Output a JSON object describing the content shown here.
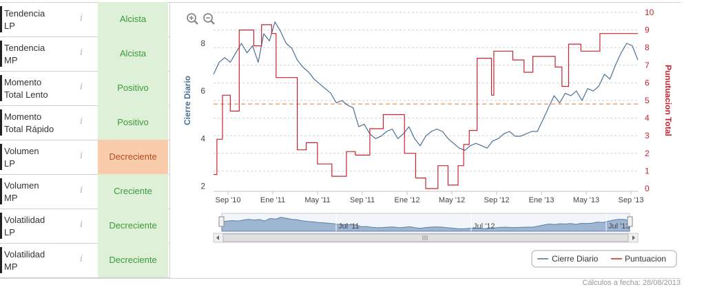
{
  "indicators": [
    {
      "line1": "Tendencia",
      "line2": "LP",
      "value": "Alcista",
      "tone": "pos"
    },
    {
      "line1": "Tendencia",
      "line2": "MP",
      "value": "Alcista",
      "tone": "pos"
    },
    {
      "line1": "Momento",
      "line2": "Total Lento",
      "value": "Positivo",
      "tone": "pos"
    },
    {
      "line1": "Momento",
      "line2": "Total Rápido",
      "value": "Positivo",
      "tone": "pos"
    },
    {
      "line1": "Volumen",
      "line2": "LP",
      "value": "Decreciente",
      "tone": "neg"
    },
    {
      "line1": "Volumen",
      "line2": "MP",
      "value": "Creciente",
      "tone": "pos"
    },
    {
      "line1": "Volatilidad",
      "line2": "LP",
      "value": "Decreciente",
      "tone": "pos"
    },
    {
      "line1": "Volatilidad",
      "line2": "MP",
      "value": "Decreciente",
      "tone": "pos"
    }
  ],
  "info_glyph": "i",
  "footer": "Cálculos a fecha: 28/08/2013",
  "colors": {
    "left_axis": "#4a6f94",
    "right_axis": "#c8222f",
    "positive_bg": "#dff0d8",
    "negative_bg": "#f9cdab",
    "threshold": "#f0a070"
  },
  "icons": [
    "zoom-in-icon",
    "zoom-out-icon"
  ],
  "chart_data": {
    "type": "line",
    "xlabels": [
      "Sep '10",
      "Ene '11",
      "May '11",
      "Sep '11",
      "Ene '12",
      "May '12",
      "Sep '12",
      "Ene '13",
      "May '13",
      "Sep '13"
    ],
    "ylabel_left": "Cierre Diario",
    "ylabel_right": "Punutuacion Total",
    "yticks_left": [
      2,
      4,
      6,
      8
    ],
    "yticks_right": [
      0,
      1,
      2,
      3,
      4,
      5,
      6,
      7,
      8,
      9,
      10
    ],
    "ylim_left": [
      1.9,
      9.3
    ],
    "ylim_right": [
      0,
      10
    ],
    "threshold_right": 4.8,
    "legend": [
      "Cierre Diario",
      "Puntuacion"
    ],
    "legend_position": "bottom-right",
    "grid": true,
    "series": [
      {
        "name": "Cierre Diario",
        "axis": "left",
        "color": "#4a6f94",
        "x": [
          0,
          0.5,
          1,
          1.5,
          2,
          2.5,
          3,
          3.5,
          4,
          4.5,
          5,
          5.5,
          6,
          6.5,
          7,
          7.5,
          8,
          8.5,
          9,
          9.5,
          10,
          10.5,
          11,
          11.5,
          12,
          12.5,
          13,
          13.5,
          14,
          14.5,
          15,
          15.5,
          16,
          16.5,
          17,
          17.5,
          18,
          18.5,
          19,
          19.5,
          20,
          20.5,
          21,
          21.5,
          22,
          22.5,
          23,
          23.5,
          24,
          24.5,
          25,
          25.5,
          26,
          26.5,
          27,
          27.5,
          28,
          28.5,
          29,
          29.5,
          30,
          30.5,
          31,
          31.5,
          32,
          32.5,
          33,
          33.5,
          34,
          34.5,
          35,
          35.5,
          36,
          36.5,
          37,
          37.5,
          38
        ],
        "values": [
          6.7,
          7.2,
          7.4,
          7.2,
          7.6,
          8.0,
          7.6,
          7.9,
          7.2,
          8.4,
          8.1,
          8.9,
          8.5,
          8.0,
          7.8,
          7.3,
          7.0,
          6.8,
          6.5,
          6.3,
          6.1,
          5.9,
          5.5,
          5.6,
          5.4,
          5.3,
          4.5,
          4.6,
          4.2,
          4.0,
          4.1,
          4.3,
          4.4,
          4.0,
          4.2,
          4.5,
          4.0,
          3.7,
          4.1,
          4.3,
          4.4,
          4.3,
          4.0,
          3.8,
          3.6,
          3.5,
          3.7,
          3.8,
          3.7,
          3.6,
          3.9,
          4.0,
          4.2,
          4.3,
          4.1,
          4.1,
          4.2,
          4.3,
          4.3,
          4.8,
          5.3,
          5.8,
          5.5,
          5.9,
          5.8,
          6.0,
          5.6,
          6.1,
          6.0,
          6.2,
          6.7,
          6.5,
          7.1,
          7.6,
          8.0,
          7.9,
          7.3
        ]
      },
      {
        "name": "Puntuacion",
        "axis": "right",
        "color": "#c8222f",
        "x": [
          0,
          0.3,
          0.3,
          0.8,
          0.8,
          1.5,
          1.5,
          2.3,
          2.3,
          3.6,
          3.6,
          4.3,
          4.3,
          5.2,
          5.2,
          5.6,
          5.6,
          7.5,
          7.5,
          8.3,
          8.3,
          9.3,
          9.3,
          10.6,
          10.6,
          11.9,
          11.9,
          12.7,
          12.7,
          14.0,
          14.0,
          15.2,
          15.2,
          17.1,
          17.1,
          18.1,
          18.1,
          19.0,
          19.0,
          20.1,
          20.1,
          21.0,
          21.0,
          21.9,
          21.9,
          22.4,
          22.4,
          22.9,
          22.9,
          23.6,
          23.6,
          24.9,
          24.9,
          25.1,
          25.1,
          26.8,
          26.8,
          27.8,
          27.8,
          28.6,
          28.6,
          30.6,
          30.6,
          31.2,
          31.2,
          31.8,
          31.8,
          32.9,
          32.9,
          34.6,
          34.6,
          35.5,
          35.5,
          36.4,
          36.4,
          37.5,
          37.5,
          38
        ],
        "values": [
          0.8,
          0.8,
          2.8,
          2.8,
          5.3,
          5.3,
          4.4,
          4.4,
          9.0,
          9.0,
          8.1,
          8.1,
          9.3,
          9.3,
          8.8,
          8.8,
          6.3,
          6.3,
          2.2,
          2.2,
          2.6,
          2.6,
          1.4,
          1.4,
          0.7,
          0.7,
          2.1,
          2.1,
          1.9,
          1.9,
          3.4,
          3.4,
          4.2,
          4.2,
          2.0,
          2.0,
          0.6,
          0.6,
          0.0,
          0.0,
          1.3,
          1.3,
          0.2,
          0.2,
          1.3,
          1.3,
          2.5,
          2.5,
          3.3,
          3.3,
          7.4,
          7.4,
          5.3,
          5.3,
          7.8,
          7.8,
          7.3,
          7.3,
          6.6,
          6.6,
          7.5,
          7.5,
          6.9,
          6.9,
          5.8,
          5.8,
          8.2,
          8.2,
          7.8,
          7.8,
          8.8,
          8.8,
          8.8,
          8.8,
          8.8,
          8.8,
          8.8,
          8.8
        ]
      }
    ]
  }
}
